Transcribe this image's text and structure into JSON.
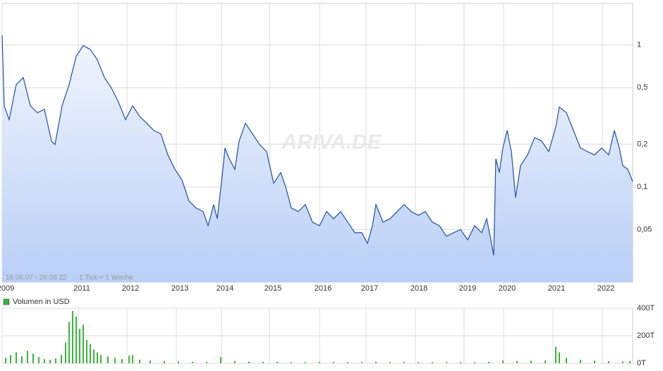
{
  "chart_data": [
    {
      "type": "line",
      "color": "#1f4fa8",
      "log_scale": true,
      "grid": true,
      "date_range": "18.06.07 - 26.08.22",
      "tick_info": "1 Tick = 1 Woche",
      "watermark": "ARIVA.DE",
      "x": [
        0,
        3,
        10,
        20,
        30,
        40,
        50,
        60,
        70,
        75,
        85,
        95,
        105,
        115,
        125,
        135,
        145,
        155,
        165,
        175,
        185,
        195,
        205,
        215,
        225,
        235,
        245,
        255,
        265,
        275,
        285,
        292,
        300,
        305,
        312,
        316,
        322,
        330,
        336,
        345,
        355,
        365,
        375,
        385,
        395,
        402,
        410,
        420,
        430,
        440,
        450,
        460,
        470,
        480,
        490,
        500,
        510,
        518,
        525,
        530,
        540,
        550,
        560,
        570,
        580,
        590,
        600,
        610,
        620,
        630,
        640,
        650,
        660,
        670,
        680,
        687,
        693,
        697,
        700,
        705,
        710,
        716,
        722,
        728,
        735,
        745,
        755,
        765,
        775,
        785,
        790,
        800,
        810,
        820,
        830,
        840,
        850,
        860,
        868,
        875,
        880,
        887,
        894
      ],
      "values": [
        1.17,
        0.373,
        0.297,
        0.526,
        0.59,
        0.373,
        0.333,
        0.352,
        0.21,
        0.199,
        0.373,
        0.526,
        0.832,
        0.99,
        0.93,
        0.786,
        0.59,
        0.497,
        0.395,
        0.297,
        0.373,
        0.314,
        0.281,
        0.25,
        0.236,
        0.168,
        0.133,
        0.112,
        0.0794,
        0.071,
        0.067,
        0.0532,
        0.075,
        0.0596,
        0.119,
        0.188,
        0.158,
        0.133,
        0.21,
        0.281,
        0.236,
        0.199,
        0.177,
        0.106,
        0.126,
        0.1,
        0.071,
        0.067,
        0.075,
        0.0564,
        0.0532,
        0.067,
        0.0596,
        0.067,
        0.0564,
        0.0475,
        0.0475,
        0.04,
        0.0532,
        0.075,
        0.0564,
        0.0596,
        0.067,
        0.075,
        0.067,
        0.063,
        0.067,
        0.0564,
        0.0532,
        0.0449,
        0.0475,
        0.05,
        0.0423,
        0.0532,
        0.0475,
        0.0596,
        0.0423,
        0.0329,
        0.158,
        0.126,
        0.188,
        0.25,
        0.177,
        0.0841,
        0.141,
        0.168,
        0.223,
        0.21,
        0.177,
        0.265,
        0.365,
        0.333,
        0.25,
        0.188,
        0.177,
        0.168,
        0.188,
        0.168,
        0.25,
        0.188,
        0.141,
        0.133,
        0.109
      ],
      "xlim": [
        0,
        894
      ],
      "xticks": [
        {
          "value": 0,
          "label": "2009"
        },
        {
          "value": 108,
          "label": "2011"
        },
        {
          "value": 177,
          "label": "2012"
        },
        {
          "value": 247,
          "label": "2013"
        },
        {
          "value": 311,
          "label": "2014"
        },
        {
          "value": 379,
          "label": "2015"
        },
        {
          "value": 450,
          "label": "2016"
        },
        {
          "value": 516,
          "label": "2017"
        },
        {
          "value": 586,
          "label": "2018"
        },
        {
          "value": 655,
          "label": "2019"
        },
        {
          "value": 711,
          "label": "2020"
        },
        {
          "value": 781,
          "label": "2021"
        },
        {
          "value": 851,
          "label": "2022"
        }
      ],
      "ylim": [
        0.0213,
        1.96
      ],
      "yticks": [
        1,
        {
          "value": 0.5,
          "label": "0,5"
        },
        {
          "value": 0.2,
          "label": "0,2"
        },
        {
          "value": 0.1,
          "label": "0,1"
        },
        {
          "value": 0.05,
          "label": "0,05"
        }
      ]
    },
    {
      "type": "bar",
      "grid": true,
      "series": [
        {
          "name": "Volumen in USD",
          "color": "#3cb43c",
          "x": [
            5,
            12,
            20,
            28,
            36,
            44,
            52,
            60,
            68,
            76,
            84,
            90,
            95,
            100,
            105,
            110,
            115,
            120,
            125,
            130,
            135,
            140,
            150,
            160,
            170,
            180,
            185,
            195,
            210,
            230,
            250,
            270,
            290,
            310,
            330,
            350,
            370,
            390,
            410,
            430,
            450,
            470,
            490,
            510,
            530,
            550,
            570,
            590,
            610,
            630,
            650,
            670,
            690,
            710,
            730,
            750,
            770,
            785,
            790,
            800,
            820,
            840,
            860,
            880,
            890
          ],
          "values": [
            40,
            60,
            80,
            50,
            90,
            70,
            45,
            30,
            25,
            35,
            60,
            150,
            300,
            380,
            340,
            250,
            280,
            170,
            140,
            100,
            80,
            60,
            50,
            40,
            30,
            55,
            60,
            25,
            20,
            15,
            12,
            10,
            10,
            45,
            15,
            12,
            10,
            10,
            8,
            8,
            8,
            8,
            8,
            8,
            10,
            8,
            8,
            8,
            8,
            8,
            8,
            8,
            10,
            20,
            15,
            18,
            20,
            120,
            80,
            40,
            25,
            20,
            15,
            12,
            15
          ]
        }
      ],
      "xlim": [
        0,
        894
      ],
      "ylim": [
        0,
        400
      ],
      "yticks": [
        {
          "value": 0,
          "label": "0T"
        },
        {
          "value": 200,
          "label": "200T"
        },
        {
          "value": 400,
          "label": "400T"
        }
      ]
    }
  ]
}
